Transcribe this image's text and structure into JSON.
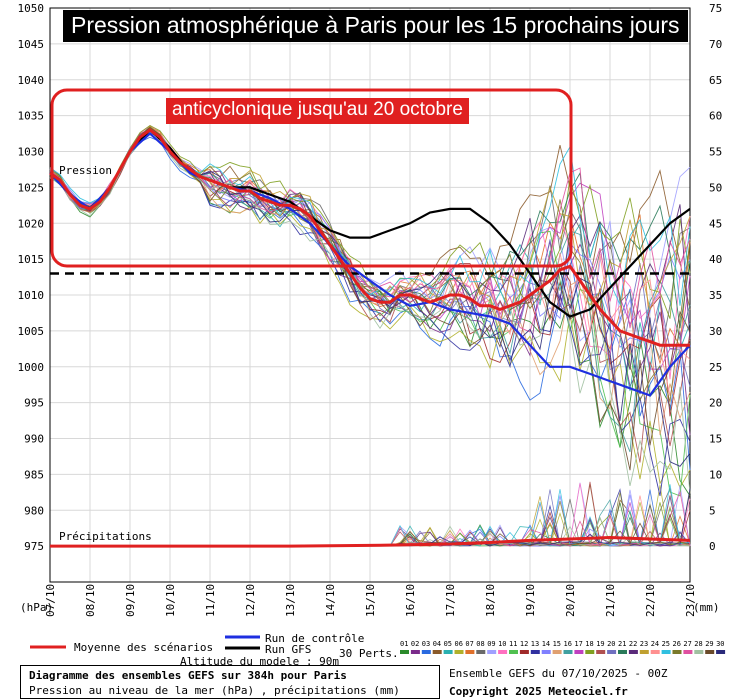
{
  "chart_data": {
    "type": "line",
    "title": "Pression atmosphérique à Paris pour les 15 prochains jours",
    "annotation": "anticyclonique jusqu'au 20 octobre",
    "left_axis_unit": "(hPa)",
    "right_axis_unit": "(mm)",
    "pressure_axis": {
      "min": 970,
      "max": 1050,
      "ticks": [
        1050,
        1045,
        1040,
        1035,
        1030,
        1025,
        1020,
        1015,
        1010,
        1005,
        1000,
        995,
        990,
        985,
        980,
        975
      ]
    },
    "precip_axis": {
      "min": -5,
      "max": 75,
      "ticks": [
        75,
        70,
        65,
        60,
        55,
        50,
        45,
        40,
        35,
        30,
        25,
        20,
        15,
        10,
        5,
        0
      ]
    },
    "x_ticks": [
      "07/10",
      "08/10",
      "09/10",
      "10/10",
      "11/10",
      "12/10",
      "13/10",
      "14/10",
      "15/10",
      "16/10",
      "17/10",
      "18/10",
      "19/10",
      "20/10",
      "21/10",
      "22/10",
      "23/10"
    ],
    "reference_line_hpa": 1013,
    "series_labels": {
      "pressure": "Pression",
      "precip": "Précipitations"
    },
    "mean_pressure": [
      [
        0,
        1027
      ],
      [
        0.25,
        1026
      ],
      [
        0.5,
        1024
      ],
      [
        0.75,
        1022.5
      ],
      [
        1,
        1022
      ],
      [
        1.25,
        1023
      ],
      [
        1.5,
        1025
      ],
      [
        1.75,
        1027.5
      ],
      [
        2,
        1030
      ],
      [
        2.25,
        1032
      ],
      [
        2.5,
        1033
      ],
      [
        2.75,
        1032
      ],
      [
        3,
        1030
      ],
      [
        3.25,
        1028.5
      ],
      [
        3.5,
        1027.5
      ],
      [
        3.75,
        1026.5
      ],
      [
        4,
        1026
      ],
      [
        4.25,
        1025.5
      ],
      [
        4.5,
        1025
      ],
      [
        4.75,
        1024.5
      ],
      [
        5,
        1024.5
      ],
      [
        5.25,
        1023.5
      ],
      [
        5.5,
        1023
      ],
      [
        5.75,
        1022.5
      ],
      [
        6,
        1022.5
      ],
      [
        6.25,
        1022
      ],
      [
        6.5,
        1021
      ],
      [
        6.75,
        1019
      ],
      [
        7,
        1017
      ],
      [
        7.25,
        1015
      ],
      [
        7.5,
        1013
      ],
      [
        7.75,
        1011
      ],
      [
        8,
        1009.5
      ],
      [
        8.25,
        1009
      ],
      [
        8.5,
        1009
      ],
      [
        8.75,
        1010
      ],
      [
        9,
        1010
      ],
      [
        9.25,
        1009.5
      ],
      [
        9.5,
        1009
      ],
      [
        9.75,
        1009.5
      ],
      [
        10,
        1010
      ],
      [
        10.25,
        1010
      ],
      [
        10.5,
        1009.5
      ],
      [
        10.75,
        1008.5
      ],
      [
        11,
        1008.5
      ],
      [
        11.25,
        1008
      ],
      [
        11.5,
        1008.5
      ],
      [
        11.75,
        1009
      ],
      [
        12,
        1010
      ],
      [
        12.25,
        1011
      ],
      [
        12.5,
        1012
      ],
      [
        12.75,
        1013.5
      ],
      [
        13,
        1014
      ],
      [
        13.25,
        1012
      ],
      [
        13.5,
        1010
      ],
      [
        13.75,
        1008
      ],
      [
        14,
        1006.5
      ],
      [
        14.25,
        1005
      ],
      [
        14.5,
        1004.5
      ],
      [
        14.75,
        1004
      ],
      [
        15,
        1003.5
      ],
      [
        15.25,
        1003
      ],
      [
        15.5,
        1003
      ],
      [
        15.75,
        1003
      ],
      [
        16,
        1003
      ]
    ],
    "control_run": [
      [
        0,
        1027
      ],
      [
        0.5,
        1024
      ],
      [
        1,
        1022
      ],
      [
        1.5,
        1025
      ],
      [
        2,
        1030
      ],
      [
        2.5,
        1032.5
      ],
      [
        3,
        1030
      ],
      [
        3.5,
        1027
      ],
      [
        4,
        1026
      ],
      [
        4.5,
        1025
      ],
      [
        5,
        1024.5
      ],
      [
        5.5,
        1023.5
      ],
      [
        6,
        1022
      ],
      [
        6.5,
        1020
      ],
      [
        7,
        1017
      ],
      [
        7.5,
        1014
      ],
      [
        8,
        1012
      ],
      [
        8.5,
        1010
      ],
      [
        9,
        1008.5
      ],
      [
        9.5,
        1009
      ],
      [
        10,
        1008
      ],
      [
        10.5,
        1007.5
      ],
      [
        11,
        1007
      ],
      [
        11.5,
        1006
      ],
      [
        12,
        1003
      ],
      [
        12.5,
        1000
      ],
      [
        13,
        1000
      ],
      [
        13.5,
        999
      ],
      [
        14,
        998
      ],
      [
        14.5,
        997
      ],
      [
        15,
        996
      ],
      [
        15.5,
        1000
      ],
      [
        16,
        1003
      ]
    ],
    "gfs_run": [
      [
        0,
        1027
      ],
      [
        0.5,
        1024
      ],
      [
        1,
        1022
      ],
      [
        1.5,
        1025
      ],
      [
        2,
        1030
      ],
      [
        2.5,
        1033
      ],
      [
        3,
        1030.5
      ],
      [
        3.5,
        1027
      ],
      [
        4,
        1026
      ],
      [
        4.5,
        1025
      ],
      [
        5,
        1025
      ],
      [
        5.5,
        1024
      ],
      [
        6,
        1023
      ],
      [
        6.5,
        1021
      ],
      [
        7,
        1019
      ],
      [
        7.5,
        1018
      ],
      [
        8,
        1018
      ],
      [
        8.5,
        1019
      ],
      [
        9,
        1020
      ],
      [
        9.5,
        1021.5
      ],
      [
        10,
        1022
      ],
      [
        10.5,
        1022
      ],
      [
        11,
        1020
      ],
      [
        11.5,
        1017
      ],
      [
        12,
        1013
      ],
      [
        12.5,
        1009
      ],
      [
        13,
        1007
      ],
      [
        13.5,
        1008
      ],
      [
        14,
        1011
      ],
      [
        14.5,
        1014
      ],
      [
        15,
        1017
      ],
      [
        15.5,
        1020
      ],
      [
        16,
        1022
      ]
    ],
    "mean_precip": [
      [
        0,
        0
      ],
      [
        2,
        0
      ],
      [
        4,
        0
      ],
      [
        6,
        0
      ],
      [
        8,
        0.1
      ],
      [
        9,
        0.2
      ],
      [
        10,
        0.3
      ],
      [
        11,
        0.5
      ],
      [
        12,
        0.8
      ],
      [
        13,
        1
      ],
      [
        14,
        1.2
      ],
      [
        15,
        1
      ],
      [
        16,
        0.8
      ]
    ],
    "legend": {
      "mean": "Moyenne des scénarios",
      "control": "Run de contrôle",
      "gfs": "Run GFS",
      "perts_label": "30 Perts.",
      "perts_numbers": [
        "01",
        "02",
        "03",
        "04",
        "05",
        "06",
        "07",
        "08",
        "09",
        "10",
        "11",
        "12",
        "13",
        "14",
        "15",
        "16",
        "17",
        "18",
        "19",
        "20",
        "21",
        "22",
        "23",
        "24",
        "25",
        "26",
        "27",
        "28",
        "29",
        "30"
      ],
      "altitude": "Altitude du modele : 90m"
    },
    "colors": {
      "mean": "#e02020",
      "control": "#1e2fe0",
      "gfs": "#000000",
      "perts": [
        "#2a8a2a",
        "#7a2a8a",
        "#2a6ae0",
        "#8a5a2a",
        "#2ab0b0",
        "#b0b02a",
        "#e0702a",
        "#6a6a6a",
        "#a0a0ff",
        "#ff70c0",
        "#50c050",
        "#a02a2a",
        "#3030a0",
        "#8080ff",
        "#e0a070",
        "#40a0a0",
        "#c040c0",
        "#80a020",
        "#b05050",
        "#7070c0",
        "#2a7a5a",
        "#5a2a7a",
        "#c0a030",
        "#ff9090",
        "#30c0e0",
        "#7a7a2a",
        "#e050a0",
        "#a0c0a0",
        "#6a4a2a",
        "#2a2a7a"
      ]
    }
  },
  "footer": {
    "desc_line1": "Diagramme des ensembles GEFS sur 384h pour Paris",
    "desc_line2": "Pression au niveau de la mer (hPa) , précipitations (mm)",
    "ensemble": "Ensemble GEFS du 07/10/2025 - 00Z",
    "copyright": "Copyright 2025 Meteociel.fr"
  }
}
